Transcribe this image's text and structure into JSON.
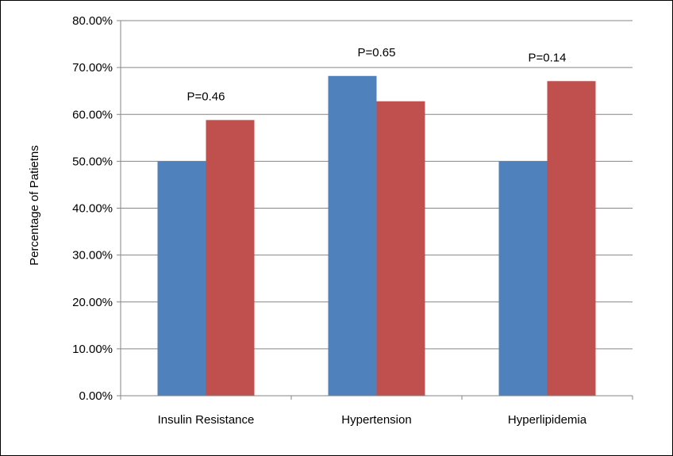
{
  "chart_data": {
    "type": "bar",
    "title": "",
    "xlabel": "",
    "ylabel": "Percentage of Patietns",
    "categories": [
      "Insulin Resistance",
      "Hypertension",
      "Hyperlipidemia"
    ],
    "series": [
      {
        "color": "#4f81bd",
        "values": [
          50.0,
          68.2,
          50.0
        ]
      },
      {
        "color": "#c0504d",
        "values": [
          58.8,
          62.8,
          67.1
        ]
      }
    ],
    "ylim": [
      0,
      80
    ],
    "yticks": [
      "0.00%",
      "10.00%",
      "20.00%",
      "30.00%",
      "40.00%",
      "50.00%",
      "60.00%",
      "70.00%",
      "80.00%"
    ],
    "annotations": [
      {
        "category": "Insulin Resistance",
        "text": "P=0.46"
      },
      {
        "category": "Hypertension",
        "text": "P=0.65"
      },
      {
        "category": "Hyperlipidemia",
        "text": "P=0.14"
      }
    ],
    "grid": true,
    "legend": "none",
    "colors": {
      "gridline": "#868686",
      "axis": "#868686"
    }
  }
}
